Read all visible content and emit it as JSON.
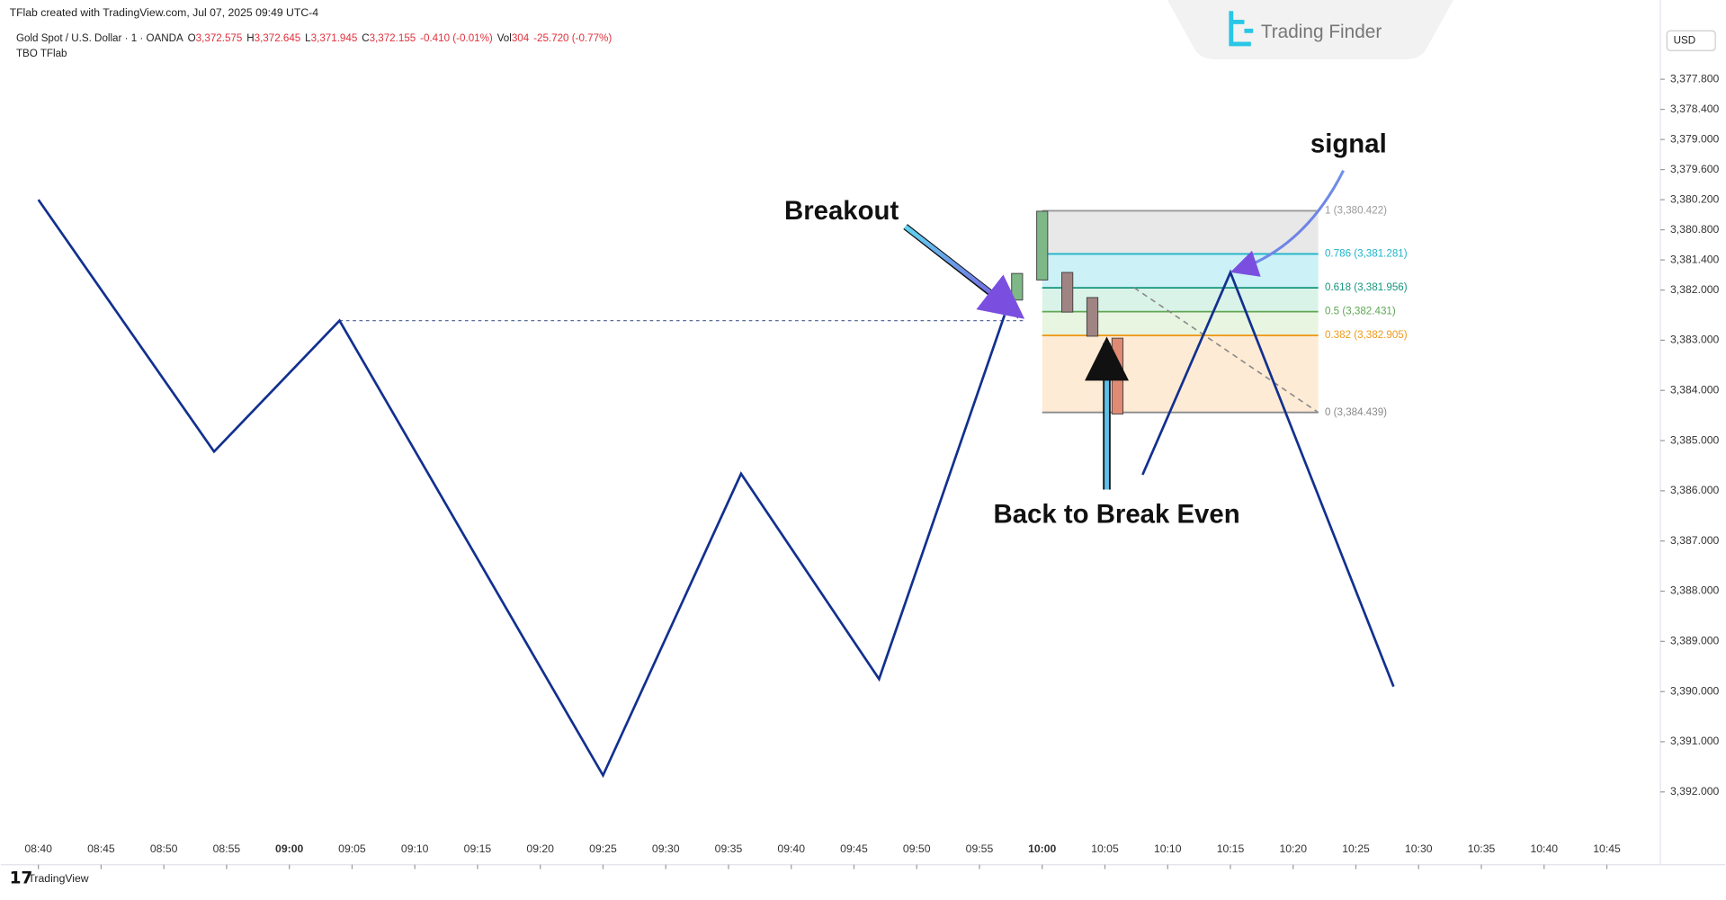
{
  "header": {
    "created": "TFlab created with TradingView.com, Jul 07, 2025 09:49 UTC-4",
    "symbol": "Gold Spot / U.S. Dollar · 1 · OANDA",
    "open_label": "O",
    "open": "3,372.575",
    "high_label": "H",
    "high": "3,372.645",
    "low_label": "L",
    "low": "3,371.945",
    "close_label": "C",
    "close": "3,372.155",
    "change": "-0.410 (-0.01%)",
    "vol_label": "Vol",
    "vol": "304",
    "vol_change": "-25.720 (-0.77%)",
    "indicator": "TBO TFlab",
    "currency": "USD",
    "brand": "Trading Finder",
    "footer": "TradingView"
  },
  "chart_data": {
    "type": "line",
    "xlim": [
      "08:37",
      "10:49"
    ],
    "xticks": [
      "08:40",
      "08:45",
      "08:50",
      "08:55",
      "09:00",
      "09:05",
      "09:10",
      "09:15",
      "09:20",
      "09:25",
      "09:30",
      "09:35",
      "09:40",
      "09:45",
      "09:50",
      "09:55",
      "10:00",
      "10:05",
      "10:10",
      "10:15",
      "10:20",
      "10:25",
      "10:30",
      "10:35",
      "10:40",
      "10:45"
    ],
    "ylim": [
      3392.88,
      3376.66
    ],
    "yticks": [
      {
        "value": 3377.8,
        "label": "3,377.800"
      },
      {
        "value": 3378.4,
        "label": "3,378.400"
      },
      {
        "value": 3379.0,
        "label": "3,379.000"
      },
      {
        "value": 3379.6,
        "label": "3,379.600"
      },
      {
        "value": 3380.2,
        "label": "3,380.200"
      },
      {
        "value": 3380.8,
        "label": "3,380.800"
      },
      {
        "value": 3381.4,
        "label": "3,381.400"
      },
      {
        "value": 3382.0,
        "label": "3,382.000"
      },
      {
        "value": 3383.0,
        "label": "3,383.000"
      },
      {
        "value": 3384.0,
        "label": "3,384.000"
      },
      {
        "value": 3385.0,
        "label": "3,385.000"
      },
      {
        "value": 3386.0,
        "label": "3,386.000"
      },
      {
        "value": 3387.0,
        "label": "3,387.000"
      },
      {
        "value": 3388.0,
        "label": "3,388.000"
      },
      {
        "value": 3389.0,
        "label": "3,389.000"
      },
      {
        "value": 3390.0,
        "label": "3,390.000"
      },
      {
        "value": 3391.0,
        "label": "3,391.000"
      },
      {
        "value": 3392.0,
        "label": "3,392.000"
      }
    ],
    "series": [
      {
        "color": "#12308f",
        "x": [
          "08:40",
          "08:54",
          "09:04",
          "09:25",
          "09:36",
          "09:47",
          "09:57",
          "10:07",
          "10:08",
          "10:15",
          "10:28"
        ],
        "values": [
          3380.2,
          3385.22,
          3382.61,
          3391.67,
          3385.66,
          3389.75,
          3382.5,
          null,
          3385.68,
          3381.65,
          3389.9
        ]
      }
    ],
    "candles": {
      "x": [
        "09:58",
        "10:00",
        "10:02",
        "10:04",
        "10:06"
      ],
      "open": [
        3382.2,
        3381.8,
        3381.65,
        3382.15,
        3382.96
      ],
      "close": [
        3381.67,
        3380.43,
        3382.44,
        3382.92,
        3384.47
      ],
      "colors": [
        "#7fb887",
        "#7fb887",
        "#a08484",
        "#a08484",
        "#e08a74"
      ]
    },
    "fib": {
      "start": "10:00",
      "end": "10:22",
      "levels": [
        {
          "label": "1 (3,380.422)",
          "price": 3380.422,
          "color": "#9a9a9a",
          "fill": "rgba(205,205,205,0.45)"
        },
        {
          "label": "0.786 (3,381.281)",
          "price": 3381.281,
          "color": "#1fb3c8",
          "fill": "rgba(110,215,230,0.35)"
        },
        {
          "label": "0.618 (3,381.956)",
          "price": 3381.956,
          "color": "#15957c",
          "fill": "rgba(150,220,190,0.35)"
        },
        {
          "label": "0.5 (3,382.431)",
          "price": 3382.431,
          "color": "#5fa755",
          "fill": "rgba(190,225,170,0.35)"
        },
        {
          "label": "0.382 (3,382.905)",
          "price": 3382.905,
          "color": "#ee9a1a",
          "fill": "rgba(252,205,150,0.4)"
        },
        {
          "label": "0 (3,384.439)",
          "price": 3384.439,
          "color": "#8a8a8a"
        }
      ]
    },
    "annotations": {
      "breakout": "Breakout",
      "signal": "signal",
      "break_even": "Back to Break Even"
    }
  }
}
